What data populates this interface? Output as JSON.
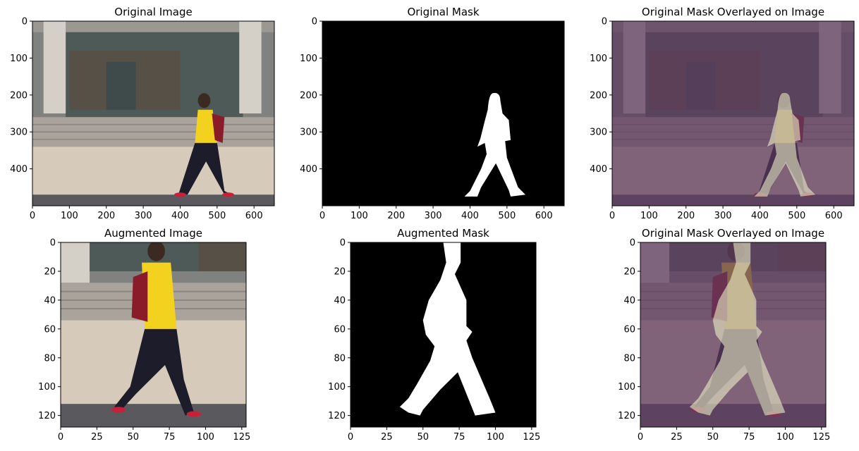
{
  "chart_data": [
    {
      "type": "image",
      "title": "Original Image",
      "xticks": [
        0,
        100,
        200,
        300,
        400,
        500,
        600
      ],
      "yticks": [
        0,
        100,
        200,
        300,
        400
      ],
      "xlim": [
        0,
        655
      ],
      "ylim": [
        0,
        500
      ],
      "content": "photo"
    },
    {
      "type": "image",
      "title": "Original Mask",
      "xticks": [
        0,
        100,
        200,
        300,
        400,
        500,
        600
      ],
      "yticks": [
        0,
        100,
        200,
        300,
        400
      ],
      "xlim": [
        0,
        655
      ],
      "ylim": [
        0,
        500
      ],
      "content": "mask"
    },
    {
      "type": "image",
      "title": "Original Mask Overlayed on Image",
      "xticks": [
        0,
        100,
        200,
        300,
        400,
        500,
        600
      ],
      "yticks": [
        0,
        100,
        200,
        300,
        400
      ],
      "xlim": [
        0,
        655
      ],
      "ylim": [
        0,
        500
      ],
      "content": "overlay"
    },
    {
      "type": "image",
      "title": "Augmented Image",
      "xticks": [
        0,
        25,
        50,
        75,
        100,
        125
      ],
      "yticks": [
        0,
        20,
        40,
        60,
        80,
        100,
        120
      ],
      "xlim": [
        0,
        128
      ],
      "ylim": [
        0,
        128
      ],
      "content": "photo"
    },
    {
      "type": "image",
      "title": "Augmented Mask",
      "xticks": [
        0,
        25,
        50,
        75,
        100,
        125
      ],
      "yticks": [
        0,
        20,
        40,
        60,
        80,
        100,
        120
      ],
      "xlim": [
        0,
        128
      ],
      "ylim": [
        0,
        128
      ],
      "content": "mask"
    },
    {
      "type": "image",
      "title": "Original Mask Overlayed on Image",
      "xticks": [
        0,
        25,
        50,
        75,
        100,
        125
      ],
      "yticks": [
        0,
        20,
        40,
        60,
        80,
        100,
        120
      ],
      "xlim": [
        0,
        128
      ],
      "ylim": [
        0,
        128
      ],
      "content": "overlay"
    }
  ],
  "colors": {
    "mask_bg": "#000000",
    "mask_fg": "#ffffff",
    "overlay_bg": "#5e3a60",
    "overlay_fg": "#c9b22a",
    "jacket": "#f2d21f",
    "pants": "#1c1c2a",
    "backpack": "#8a1c2a",
    "pavement": "#d6cabb",
    "steps": "#a9a39c",
    "building": "#7f827e",
    "pillar": "#d4d0c8",
    "asphalt": "#5a5a5e"
  }
}
